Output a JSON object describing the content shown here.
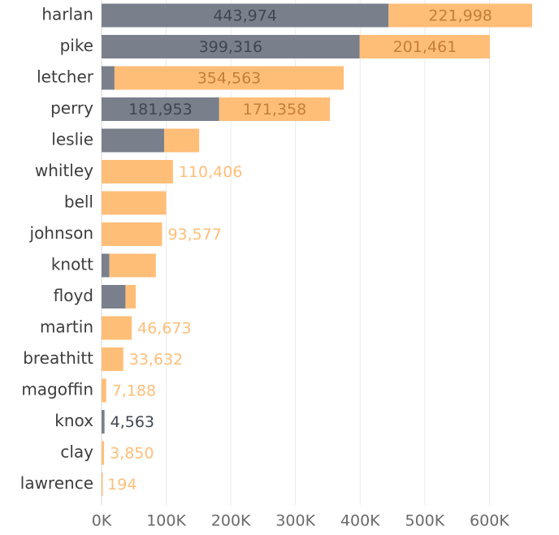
{
  "chart_data": {
    "type": "bar",
    "orientation": "horizontal",
    "stacked": true,
    "categories": [
      "harlan",
      "pike",
      "letcher",
      "perry",
      "leslie",
      "whitley",
      "bell",
      "johnson",
      "knott",
      "floyd",
      "martin",
      "breathitt",
      "magoffin",
      "knox",
      "clay",
      "lawrence"
    ],
    "series": [
      {
        "color": "#79808c",
        "label_color": "#3f4652",
        "values": [
          443974,
          399316,
          20000,
          181953,
          97000,
          0,
          0,
          0,
          12000,
          37000,
          0,
          0,
          0,
          4563,
          0,
          0
        ],
        "labels": [
          "443,974",
          "399,316",
          "",
          "181,953",
          "",
          "",
          "",
          "",
          "",
          "",
          "",
          "",
          "",
          "4,563",
          "",
          ""
        ]
      },
      {
        "color": "#ffbe78",
        "label_color": "#c47e36",
        "outside_label_color": "#ffbe78",
        "values": [
          221998,
          201461,
          354563,
          171358,
          54000,
          110406,
          100000,
          93577,
          72000,
          16000,
          46673,
          33632,
          7188,
          0,
          3850,
          194
        ],
        "labels": [
          "221,998",
          "201,461",
          "354,563",
          "171,358",
          "",
          "110,406",
          "",
          "93,577",
          "",
          "",
          "46,673",
          "33,632",
          "7,188",
          "",
          "3,850",
          "194"
        ]
      }
    ],
    "x_ticks": [
      "0K",
      "100K",
      "200K",
      "300K",
      "400K",
      "500K",
      "600K"
    ],
    "x_tick_values": [
      0,
      100000,
      200000,
      300000,
      400000,
      500000,
      600000
    ],
    "xlim": [
      0,
      700000
    ],
    "grid": true,
    "legend": "none"
  }
}
